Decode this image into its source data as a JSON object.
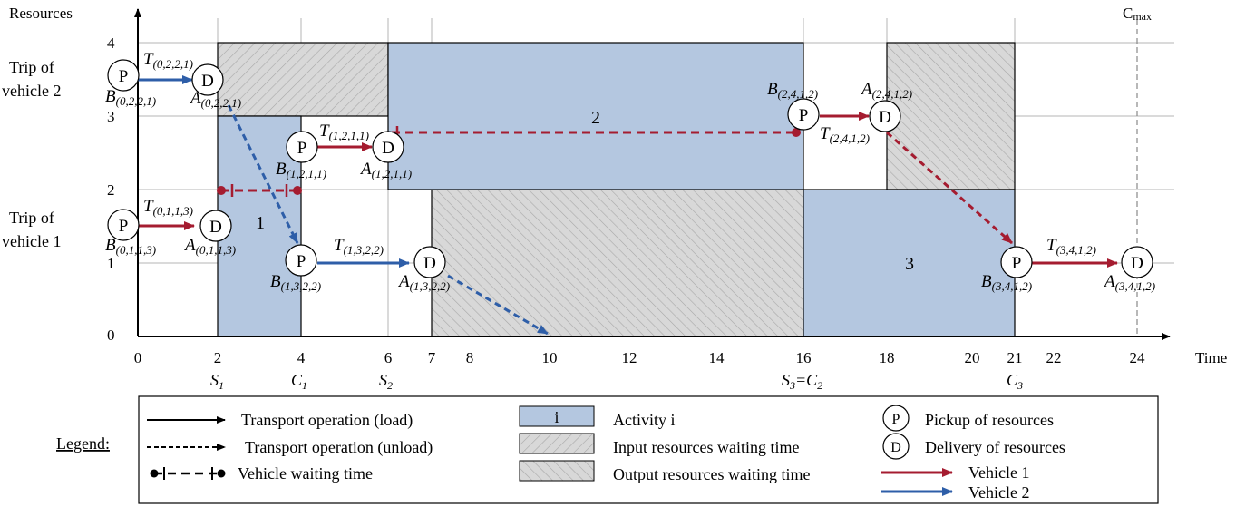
{
  "axes": {
    "y_title": "Resources",
    "x_title": "Time",
    "cmax": "C",
    "cmax_sub": "max",
    "y_ticks": [
      "0",
      "1",
      "2",
      "3",
      "4"
    ],
    "x_ticks": [
      "0",
      "2",
      "4",
      "6",
      "7",
      "8",
      "10",
      "12",
      "14",
      "16",
      "18",
      "20",
      "21",
      "22",
      "24"
    ]
  },
  "row_labels": {
    "vehicle2": [
      "Trip of",
      "vehicle 2"
    ],
    "vehicle1": [
      "Trip of",
      "vehicle 1"
    ]
  },
  "activities": [
    {
      "label": "1",
      "start": 2,
      "end": 4,
      "r_low": 0,
      "r_high": 3
    },
    {
      "label": "2",
      "start": 6,
      "end": 16,
      "r_low": 2,
      "r_high": 4
    },
    {
      "label": "3",
      "start": 16,
      "end": 21,
      "r_low": 0,
      "r_high": 2
    }
  ],
  "milestones": [
    {
      "base": "S",
      "sub": "1",
      "t": 2
    },
    {
      "base": "C",
      "sub": "1",
      "t": 4
    },
    {
      "base": "S",
      "sub": "2",
      "t": 6
    },
    {
      "base": "S",
      "sub": "3",
      "mid": "=C",
      "sub2": "2",
      "t": 16
    },
    {
      "base": "C",
      "sub": "3",
      "t": 21
    }
  ],
  "labels": {
    "T0221": "T",
    "T0221_sub": "(0,2,2,1)",
    "B0221": "B",
    "B0221_sub": "(0,2,2,1)",
    "A0221": "A",
    "A0221_sub": "(0,2,2,1)",
    "T0113": "T",
    "T0113_sub": "(0,1,1,3)",
    "B0113": "B",
    "B0113_sub": "(0,1,1,3)",
    "A0113": "A",
    "A0113_sub": "(0,1,1,3)",
    "T1211": "T",
    "T1211_sub": "(1,2,1,1)",
    "B1211": "B",
    "B1211_sub": "(1,2,1,1)",
    "A1211": "A",
    "A1211_sub": "(1,2,1,1)",
    "T1322": "T",
    "T1322_sub": "(1,3,2,2)",
    "B1322": "B",
    "B1322_sub": "(1,3,2,2)",
    "A1322": "A",
    "A1322_sub": "(1,3,2,2)",
    "T2412": "T",
    "T2412_sub": "(2,4,1,2)",
    "B2412": "B",
    "B2412_sub": "(2,4,1,2)",
    "A2412": "A",
    "A2412_sub": "(2,4,1,2)",
    "T3412": "T",
    "T3412_sub": "(3,4,1,2)",
    "B3412": "B",
    "B3412_sub": "(3,4,1,2)",
    "A3412": "A",
    "A3412_sub": "(3,4,1,2)"
  },
  "node_letters": {
    "pickup": "P",
    "delivery": "D"
  },
  "legend": {
    "title": "Legend:",
    "transport_load": "Transport operation (load)",
    "transport_unload": "Transport operation (unload)",
    "vehicle_waiting": "Vehicle waiting time",
    "activity_symbol": "i",
    "activity": "Activity i",
    "input_waiting": "Input resources waiting time",
    "output_waiting": "Output resources waiting time",
    "pickup": "Pickup of resources",
    "delivery": "Delivery of resources",
    "vehicle1": "Vehicle 1",
    "vehicle2": "Vehicle 2"
  },
  "colors": {
    "vehicle1": "#a51c30",
    "vehicle2": "#2e5ea8",
    "activity_fill": "#b4c7e0",
    "hatch_fill": "#d6d6d6"
  }
}
